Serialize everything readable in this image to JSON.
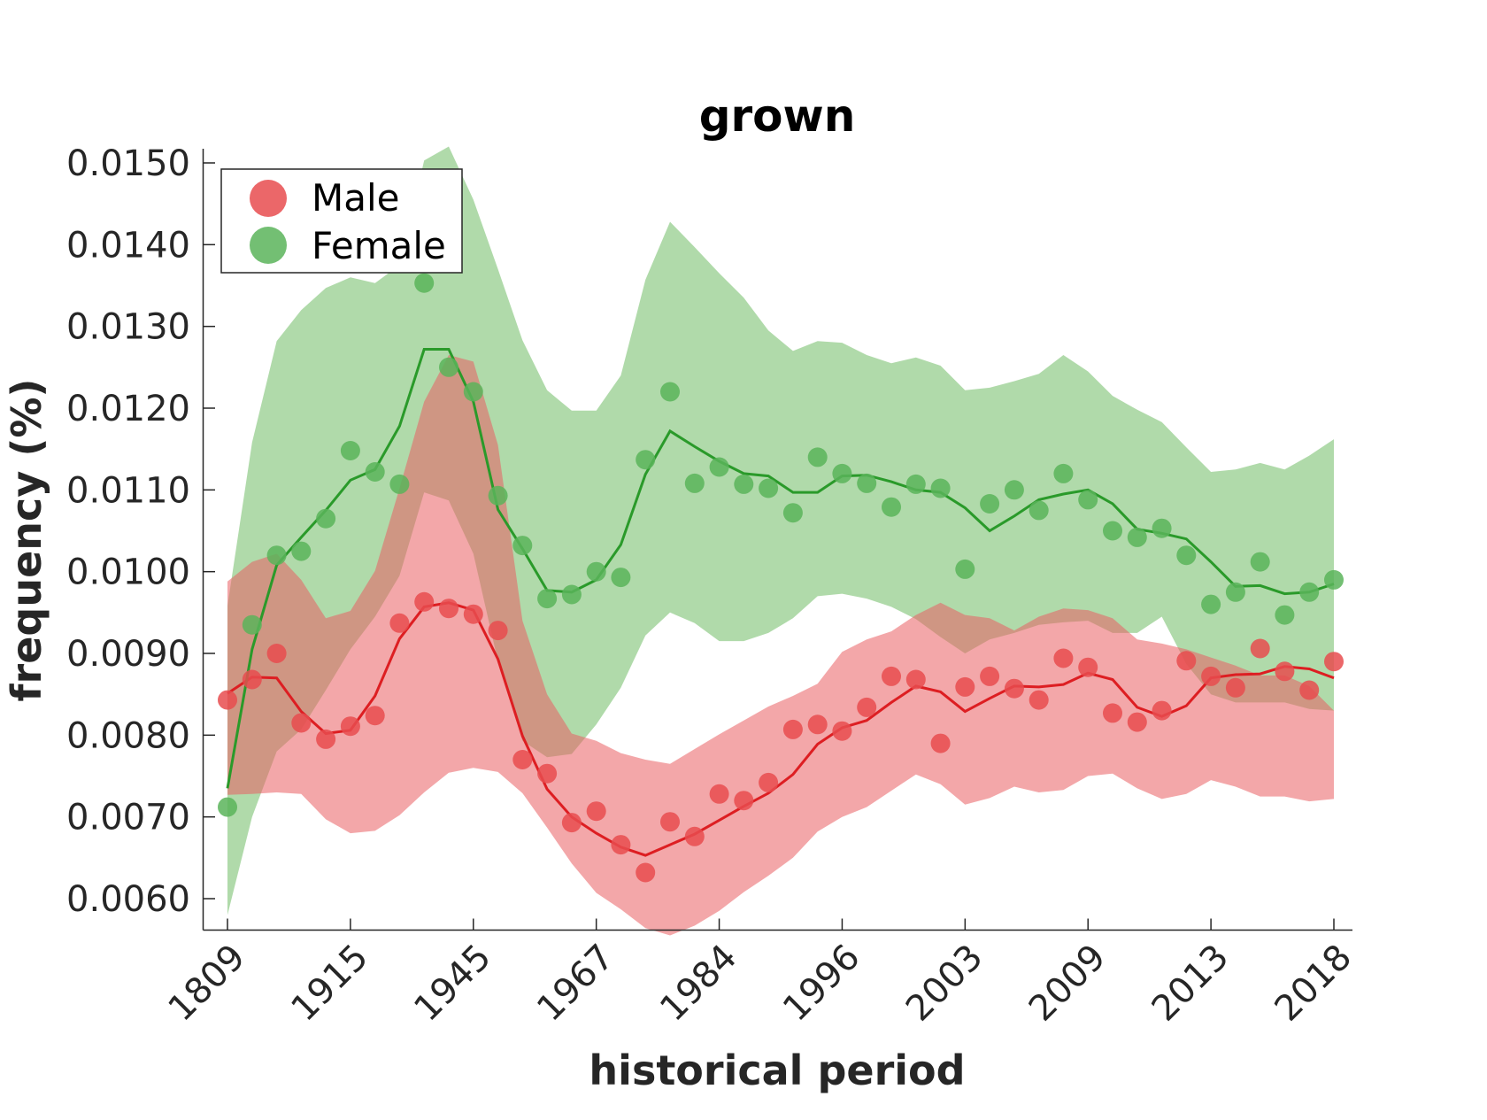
{
  "chart_data": {
    "type": "line",
    "title": "grown",
    "xlabel": "historical period",
    "ylabel": "frequency (%)",
    "ylim": [
      0.00552,
      0.01522
    ],
    "grid": false,
    "legend_position": "top-left",
    "categories": [
      "1809",
      "1915",
      "1945",
      "1967",
      "1984",
      "1996",
      "2003",
      "2009",
      "2013",
      "2018"
    ],
    "yticks": [
      "0.0060",
      "0.0070",
      "0.0080",
      "0.0090",
      "0.0100",
      "0.0110",
      "0.0120",
      "0.0130",
      "0.0140",
      "0.0150"
    ],
    "ytick_values": [
      0.006,
      0.007,
      0.008,
      0.009,
      0.01,
      0.011,
      0.012,
      0.013,
      0.014,
      0.015
    ],
    "n_points": 46,
    "series": [
      {
        "name": "Male",
        "color": "#dd1e22",
        "band_color": "#f3a0a0",
        "dot_color": "#e84c4f",
        "points": [
          0.00843,
          0.00868,
          0.009,
          0.00815,
          0.00795,
          0.00811,
          0.00824,
          0.00937,
          0.00963,
          0.00955,
          0.00948,
          0.00928,
          0.0077,
          0.00753,
          0.00693,
          0.00707,
          0.00666,
          0.00632,
          0.00694,
          0.00676,
          0.00728,
          0.0072,
          0.00742,
          0.00807,
          0.00813,
          0.00805,
          0.00834,
          0.00872,
          0.00868,
          0.0079,
          0.00859,
          0.00872,
          0.00857,
          0.00843,
          0.00894,
          0.00883,
          0.00827,
          0.00816,
          0.0083,
          0.00891,
          0.00872,
          0.00858,
          0.00906,
          0.00878,
          0.00855,
          0.0089
        ],
        "trend": [
          0.00851,
          0.00871,
          0.0087,
          0.00829,
          0.00802,
          0.00806,
          0.00848,
          0.00918,
          0.00957,
          0.00962,
          0.00953,
          0.00893,
          0.00799,
          0.00734,
          0.007,
          0.0068,
          0.00663,
          0.00653,
          0.00666,
          0.00679,
          0.00696,
          0.00713,
          0.00729,
          0.00752,
          0.00789,
          0.00809,
          0.00818,
          0.0084,
          0.0086,
          0.00853,
          0.00829,
          0.00845,
          0.0086,
          0.00859,
          0.00862,
          0.00876,
          0.00868,
          0.00834,
          0.00823,
          0.00836,
          0.0087,
          0.00874,
          0.00875,
          0.00884,
          0.00881,
          0.0087
        ],
        "band_upper": [
          0.00988,
          0.01012,
          0.01022,
          0.0099,
          0.00943,
          0.00952,
          0.01001,
          0.01102,
          0.01208,
          0.01265,
          0.01257,
          0.01155,
          0.0094,
          0.0085,
          0.00802,
          0.00793,
          0.00778,
          0.0077,
          0.00765,
          0.00783,
          0.00801,
          0.00818,
          0.00835,
          0.00848,
          0.00863,
          0.00902,
          0.00917,
          0.00927,
          0.00947,
          0.00962,
          0.00947,
          0.00943,
          0.00928,
          0.00945,
          0.00955,
          0.00953,
          0.00943,
          0.00917,
          0.00912,
          0.00905,
          0.00895,
          0.00885,
          0.00873,
          0.00873,
          0.0086,
          0.0083
        ],
        "band_lower": [
          0.00727,
          0.00728,
          0.0073,
          0.00728,
          0.00697,
          0.0068,
          0.00683,
          0.00702,
          0.0073,
          0.00754,
          0.0076,
          0.00755,
          0.00729,
          0.00687,
          0.00643,
          0.00607,
          0.00587,
          0.00564,
          0.00555,
          0.00567,
          0.00585,
          0.00608,
          0.00628,
          0.0065,
          0.00682,
          0.007,
          0.00712,
          0.00732,
          0.00752,
          0.0074,
          0.00715,
          0.00723,
          0.00737,
          0.0073,
          0.00733,
          0.0075,
          0.00753,
          0.00735,
          0.00722,
          0.00728,
          0.00745,
          0.00737,
          0.00725,
          0.00725,
          0.00719,
          0.00722
        ]
      },
      {
        "name": "Female",
        "color": "#2a9a2a",
        "band_color": "#a3d49a",
        "dot_color": "#5bb45b",
        "points": [
          0.00712,
          0.00935,
          0.0102,
          0.01025,
          0.01065,
          0.01148,
          0.01122,
          0.01107,
          0.01353,
          0.0125,
          0.0122,
          0.01093,
          0.01032,
          0.00967,
          0.00972,
          0.01,
          0.00993,
          0.01137,
          0.0122,
          0.01108,
          0.01128,
          0.01107,
          0.01102,
          0.01072,
          0.0114,
          0.0112,
          0.01108,
          0.01079,
          0.01107,
          0.01102,
          0.01003,
          0.01083,
          0.011,
          0.01075,
          0.0112,
          0.01088,
          0.0105,
          0.01042,
          0.01053,
          0.0102,
          0.0096,
          0.00975,
          0.01012,
          0.00947,
          0.00975,
          0.0099
        ],
        "trend": [
          0.00735,
          0.00905,
          0.01008,
          0.01042,
          0.01075,
          0.01112,
          0.01125,
          0.01178,
          0.01272,
          0.01272,
          0.01208,
          0.01076,
          0.01028,
          0.00977,
          0.00975,
          0.0099,
          0.01033,
          0.01119,
          0.01172,
          0.01153,
          0.01135,
          0.0112,
          0.01117,
          0.01097,
          0.01097,
          0.01117,
          0.01118,
          0.0111,
          0.011,
          0.01097,
          0.01078,
          0.0105,
          0.01068,
          0.01088,
          0.01095,
          0.011,
          0.01083,
          0.01052,
          0.01047,
          0.0104,
          0.01012,
          0.00982,
          0.00983,
          0.00973,
          0.00975,
          0.00985
        ],
        "band_upper": [
          0.00958,
          0.01158,
          0.01282,
          0.0132,
          0.01347,
          0.0136,
          0.01353,
          0.01375,
          0.01503,
          0.0152,
          0.01455,
          0.0137,
          0.01283,
          0.01222,
          0.01197,
          0.01197,
          0.0124,
          0.01357,
          0.01428,
          0.01397,
          0.01365,
          0.01335,
          0.01295,
          0.0127,
          0.01282,
          0.0128,
          0.01265,
          0.01255,
          0.01262,
          0.01252,
          0.01222,
          0.01225,
          0.01233,
          0.01242,
          0.01265,
          0.01245,
          0.01215,
          0.01198,
          0.01183,
          0.01152,
          0.01122,
          0.01125,
          0.01133,
          0.01125,
          0.01142,
          0.01162
        ],
        "band_lower": [
          0.0058,
          0.007,
          0.0078,
          0.00807,
          0.00855,
          0.00905,
          0.00945,
          0.00995,
          0.01097,
          0.01087,
          0.01022,
          0.0089,
          0.00793,
          0.00773,
          0.00777,
          0.00813,
          0.00858,
          0.00922,
          0.0095,
          0.00937,
          0.00915,
          0.00915,
          0.00925,
          0.00943,
          0.0097,
          0.00973,
          0.00967,
          0.00957,
          0.00942,
          0.0092,
          0.009,
          0.00917,
          0.00925,
          0.00935,
          0.00938,
          0.0094,
          0.00925,
          0.00925,
          0.00945,
          0.00887,
          0.0085,
          0.0084,
          0.0084,
          0.0084,
          0.00832,
          0.0083
        ]
      }
    ]
  }
}
